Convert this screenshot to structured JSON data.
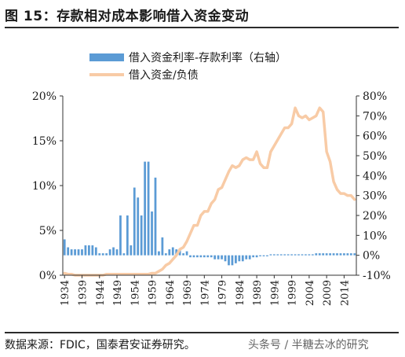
{
  "title": "图 15：存款相对成本影响借入资金变动",
  "source": "数据来源：FDIC，国泰君安证券研究。",
  "watermark": "头条号 / 半糖去冰的研究",
  "chart_data": {
    "type": "bar+line",
    "title": "",
    "xlabel": "",
    "ylabel": "",
    "y_left_lim": [
      0,
      20
    ],
    "y_left_ticks": [
      "0%",
      "5%",
      "10%",
      "15%",
      "20%"
    ],
    "y_right_lim": [
      -10,
      80
    ],
    "y_right_ticks": [
      "-10%",
      "0%",
      "10%",
      "20%",
      "30%",
      "40%",
      "50%",
      "60%",
      "70%",
      "80%"
    ],
    "x_ticks": [
      "1934",
      "1939",
      "1944",
      "1949",
      "1954",
      "1959",
      "1964",
      "1969",
      "1974",
      "1979",
      "1984",
      "1989",
      "1994",
      "1999",
      "2004",
      "2009",
      "2014"
    ],
    "legend_position": "top",
    "colors": {
      "bar": "#5b9bd5",
      "line": "#f8cba6",
      "axis": "#333333"
    },
    "years": [
      1934,
      1935,
      1936,
      1937,
      1938,
      1939,
      1940,
      1941,
      1942,
      1943,
      1944,
      1945,
      1946,
      1947,
      1948,
      1949,
      1950,
      1951,
      1952,
      1953,
      1954,
      1955,
      1956,
      1957,
      1958,
      1959,
      1960,
      1961,
      1962,
      1963,
      1964,
      1965,
      1966,
      1967,
      1968,
      1969,
      1970,
      1971,
      1972,
      1973,
      1974,
      1975,
      1976,
      1977,
      1978,
      1979,
      1980,
      1981,
      1982,
      1983,
      1984,
      1985,
      1986,
      1987,
      1988,
      1989,
      1990,
      1991,
      1992,
      1993,
      1994,
      1995,
      1996,
      1997,
      1998,
      1999,
      2000,
      2001,
      2002,
      2003,
      2004,
      2005,
      2006,
      2007,
      2008,
      2009,
      2010,
      2011,
      2012,
      2013,
      2014,
      2015,
      2016,
      2017
    ],
    "series": [
      {
        "name": "借入资金利率-存款利率（右轴）",
        "type": "bar",
        "axis": "right",
        "values": [
          8,
          4,
          3,
          3,
          3,
          3,
          5,
          5,
          5,
          4,
          1,
          1,
          1,
          3,
          4,
          3,
          20,
          1,
          20,
          5,
          34,
          29,
          20,
          47,
          47,
          22,
          39,
          2,
          9,
          1,
          3,
          4,
          3,
          3,
          1,
          2,
          -1,
          -1,
          -1,
          -1,
          -1,
          -1,
          -1,
          -2,
          -2,
          -2,
          -3,
          -5,
          -5,
          -4,
          -3,
          -3,
          -2,
          -2,
          -1,
          -1,
          -0.5,
          -0.5,
          -0.5,
          0.5,
          0.5,
          0.5,
          0.5,
          0.5,
          0.5,
          0.5,
          0.5,
          0.5,
          0.5,
          0.5,
          0.5,
          0.5,
          1,
          1,
          1,
          1,
          1,
          1,
          1,
          1,
          1,
          1,
          1,
          1
        ]
      },
      {
        "name": "借入资金/负债",
        "type": "line",
        "axis": "right",
        "values": [
          -9,
          -9.5,
          -9.5,
          -10,
          -10,
          -10,
          -10,
          -10,
          -10,
          -10,
          -10,
          -10,
          -9.5,
          -9.5,
          -9.5,
          -9.5,
          -9.5,
          -9.5,
          -9.5,
          -9.5,
          -9.5,
          -9.5,
          -9.5,
          -9.5,
          -9.5,
          -9,
          -9,
          -8,
          -7,
          -5,
          -4,
          -2,
          0,
          3,
          4,
          7,
          11,
          15,
          15,
          20,
          22,
          22,
          26,
          28,
          33,
          34,
          38,
          42,
          45,
          44,
          45,
          48,
          49,
          48,
          48,
          52,
          46,
          44,
          44,
          52,
          55,
          58,
          61,
          64,
          64,
          66,
          74,
          70,
          69,
          70,
          68,
          69,
          70,
          74,
          72,
          52,
          47,
          37,
          33,
          31,
          31,
          30,
          30,
          28
        ]
      }
    ]
  }
}
